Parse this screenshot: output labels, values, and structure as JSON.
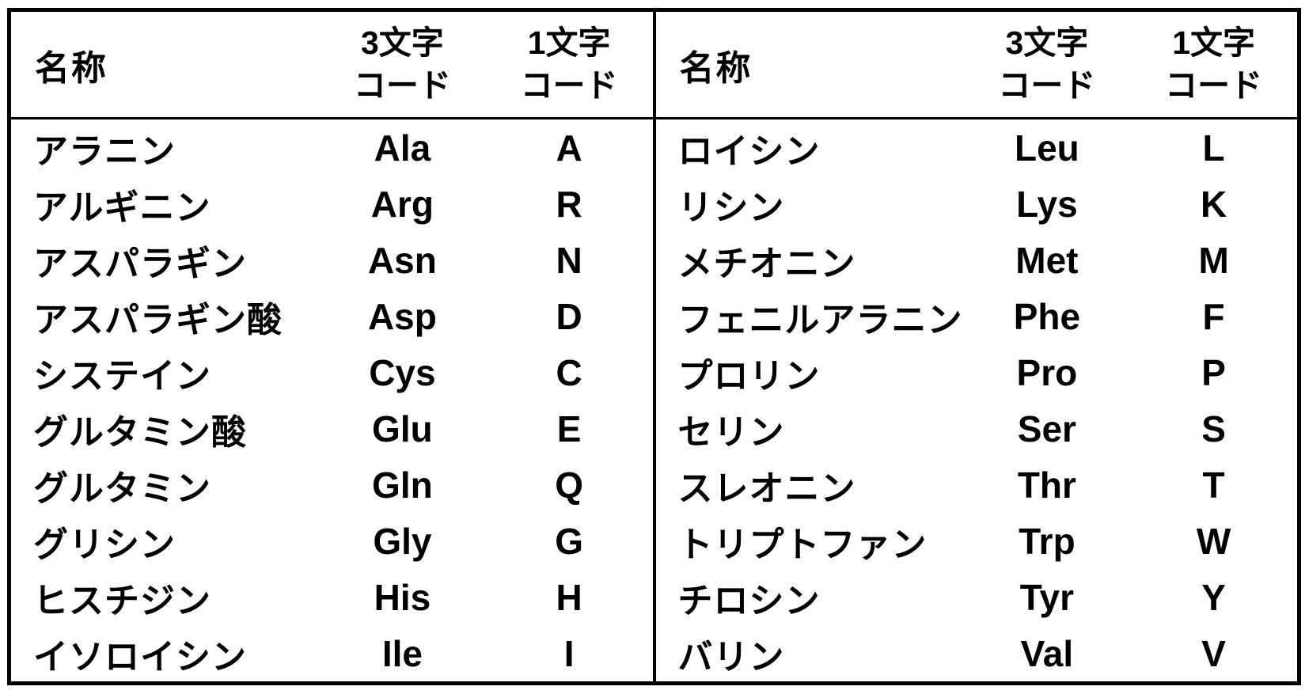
{
  "colors": {
    "ink": "#000000",
    "paper": "#ffffff"
  },
  "table": {
    "headers": {
      "name": "名称",
      "code3_top": "3文字",
      "code3_bottom": "コード",
      "code1_top": "1文字",
      "code1_bottom": "コード"
    },
    "left_rows": [
      {
        "name": "アラニン",
        "code3": "Ala",
        "code1": "A"
      },
      {
        "name": "アルギニン",
        "code3": "Arg",
        "code1": "R"
      },
      {
        "name": "アスパラギン",
        "code3": "Asn",
        "code1": "N"
      },
      {
        "name": "アスパラギン酸",
        "code3": "Asp",
        "code1": "D"
      },
      {
        "name": "システイン",
        "code3": "Cys",
        "code1": "C"
      },
      {
        "name": "グルタミン酸",
        "code3": "Glu",
        "code1": "E"
      },
      {
        "name": "グルタミン",
        "code3": "Gln",
        "code1": "Q"
      },
      {
        "name": "グリシン",
        "code3": "Gly",
        "code1": "G"
      },
      {
        "name": "ヒスチジン",
        "code3": "His",
        "code1": "H"
      },
      {
        "name": "イソロイシン",
        "code3": "Ile",
        "code1": "I"
      }
    ],
    "right_rows": [
      {
        "name": "ロイシン",
        "code3": "Leu",
        "code1": "L"
      },
      {
        "name": "リシン",
        "code3": "Lys",
        "code1": "K"
      },
      {
        "name": "メチオニン",
        "code3": "Met",
        "code1": "M"
      },
      {
        "name": "フェニルアラニン",
        "code3": "Phe",
        "code1": "F"
      },
      {
        "name": "プロリン",
        "code3": "Pro",
        "code1": "P"
      },
      {
        "name": "セリン",
        "code3": "Ser",
        "code1": "S"
      },
      {
        "name": "スレオニン",
        "code3": "Thr",
        "code1": "T"
      },
      {
        "name": "トリプトファン",
        "code3": "Trp",
        "code1": "W"
      },
      {
        "name": "チロシン",
        "code3": "Tyr",
        "code1": "Y"
      },
      {
        "name": "バリン",
        "code3": "Val",
        "code1": "V"
      }
    ]
  }
}
